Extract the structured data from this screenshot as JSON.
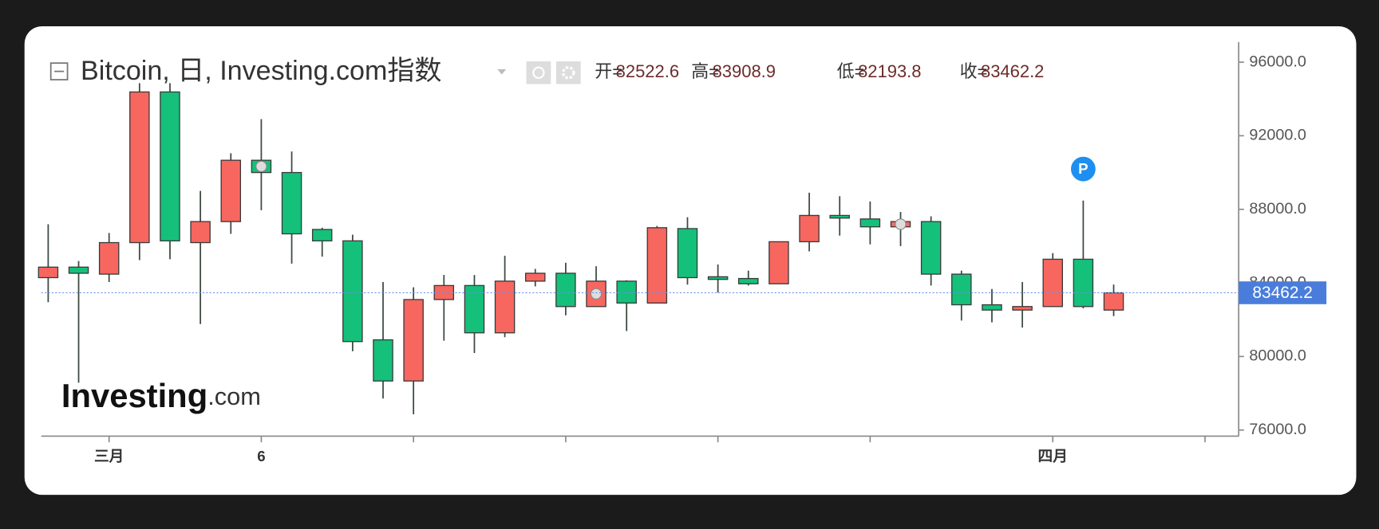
{
  "header": {
    "title": "Bitcoin, 日, Investing.com指数",
    "ohlc_labels": [
      "开=",
      "高=",
      "低=",
      "收="
    ]
  },
  "watermark": {
    "brand": "Investing",
    "suffix": ".com"
  },
  "marker_label": "P",
  "chart_data": {
    "type": "candlestick",
    "categories": [
      null,
      null,
      "三月",
      null,
      null,
      null,
      null,
      "6",
      null,
      null,
      null,
      null,
      null,
      null,
      null,
      null,
      null,
      null,
      null,
      null,
      null,
      null,
      null,
      null,
      null,
      null,
      null,
      null,
      null,
      null,
      null,
      null,
      null,
      "四月",
      null,
      null
    ],
    "open": [
      84286,
      84857,
      84476,
      86190,
      94381,
      86190,
      87333,
      90667,
      90000,
      86905,
      86286,
      80905,
      78667,
      83095,
      83857,
      81286,
      84095,
      84524,
      82714,
      84095,
      82905,
      86952,
      84333,
      84238,
      83952,
      86238,
      87667,
      87476,
      87048,
      87333,
      84476,
      82810,
      82524,
      82714,
      85286,
      82522.6
    ],
    "high": [
      87190,
      85190,
      86714,
      94857,
      94857,
      89000,
      91048,
      92905,
      91143,
      87000,
      86619,
      84048,
      83762,
      84429,
      84429,
      85476,
      84762,
      85095,
      84905,
      84143,
      87095,
      87571,
      85000,
      84667,
      86238,
      88905,
      88714,
      88429,
      87857,
      87619,
      84667,
      83667,
      84048,
      85619,
      88476,
      83908.9
    ],
    "low": [
      82952,
      78571,
      84048,
      85238,
      85286,
      81762,
      86667,
      87952,
      85048,
      85429,
      80286,
      77714,
      76857,
      80857,
      80190,
      81048,
      83810,
      82238,
      82714,
      81381,
      82905,
      83905,
      83476,
      83857,
      83952,
      85714,
      86571,
      86095,
      86000,
      83857,
      81952,
      81857,
      81571,
      82714,
      82619,
      82193.8
    ],
    "close": [
      84857,
      84524,
      86190,
      94381,
      86286,
      87333,
      90667,
      90000,
      86667,
      86286,
      80810,
      78667,
      83095,
      83857,
      81286,
      84095,
      84524,
      82714,
      84095,
      82905,
      87000,
      84286,
      84190,
      83952,
      86238,
      87667,
      87524,
      87048,
      87333,
      84476,
      82810,
      82524,
      82714,
      85286,
      82714,
      83462.2
    ],
    "up_color": "#f7675f",
    "down_color": "#15c07a",
    "ylim": [
      75667,
      97095
    ],
    "yticks": [
      {
        "value": 76000,
        "label": "76000.0"
      },
      {
        "value": 80000,
        "label": "80000.0"
      },
      {
        "value": 84000,
        "label": "84000.0"
      },
      {
        "value": 88000,
        "label": "88000.0"
      },
      {
        "value": 92000,
        "label": "92000.0"
      },
      {
        "value": 96000,
        "label": "96000.0"
      }
    ]
  }
}
